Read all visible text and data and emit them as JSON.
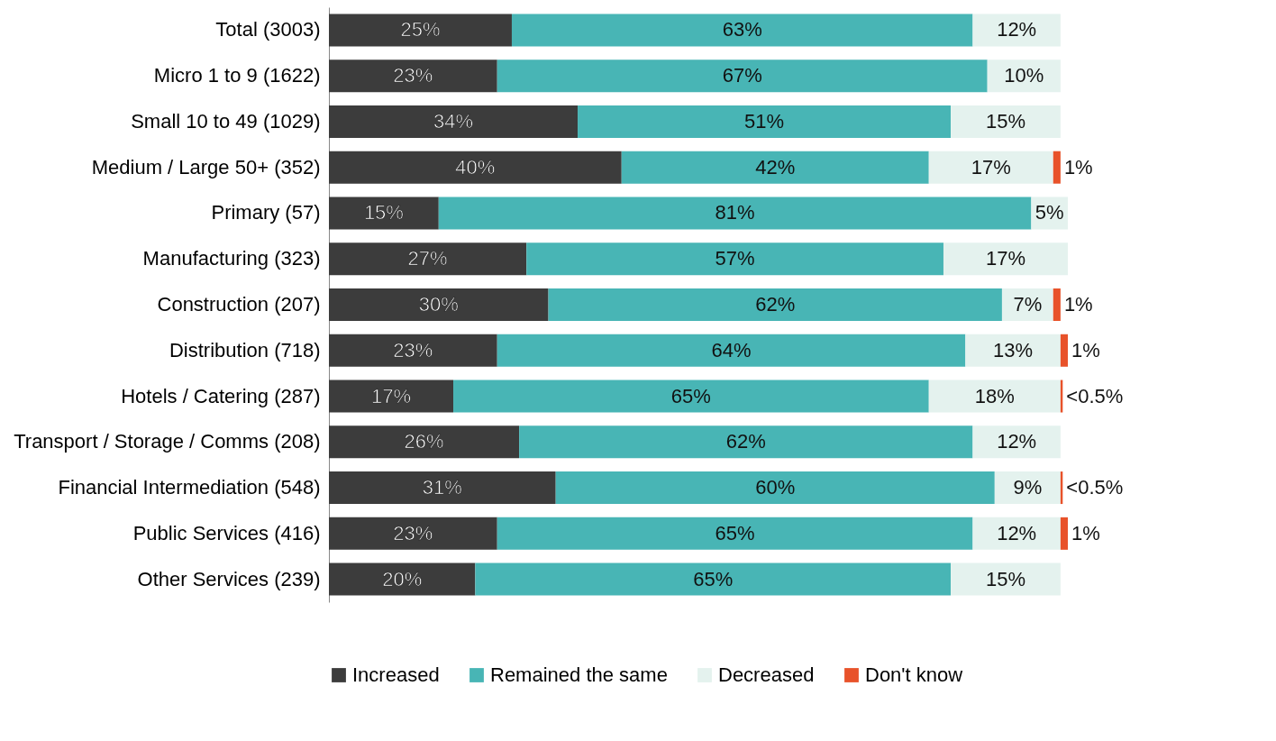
{
  "chart_data": {
    "type": "bar",
    "orientation": "horizontal",
    "stacked": true,
    "legend": "bottom",
    "categories": [
      "Total (3003)",
      "Micro 1 to 9 (1622)",
      "Small 10 to 49 (1029)",
      "Medium / Large 50+ (352)",
      "Primary  (57)",
      "Manufacturing (323)",
      "Construction (207)",
      "Distribution  (718)",
      "Hotels / Catering  (287)",
      "Transport / Storage / Comms  (208)",
      "Financial Intermediation  (548)",
      "Public Services  (416)",
      "Other Services  (239)"
    ],
    "series": [
      {
        "name": "Increased",
        "color": "#3c3c3c",
        "values": [
          25,
          23,
          34,
          40,
          15,
          27,
          30,
          23,
          17,
          26,
          31,
          23,
          20
        ],
        "value_labels": [
          "25%",
          "23%",
          "34%",
          "40%",
          "15%",
          "27%",
          "30%",
          "23%",
          "17%",
          "26%",
          "31%",
          "23%",
          "20%"
        ]
      },
      {
        "name": "Remained the same",
        "color": "#48b5b5",
        "values": [
          63,
          67,
          51,
          42,
          81,
          57,
          62,
          64,
          65,
          62,
          60,
          65,
          65
        ],
        "value_labels": [
          "63%",
          "67%",
          "51%",
          "42%",
          "81%",
          "57%",
          "62%",
          "64%",
          "65%",
          "62%",
          "60%",
          "65%",
          "65%"
        ]
      },
      {
        "name": "Decreased",
        "color": "#e4f2ee",
        "values": [
          12,
          10,
          15,
          17,
          5,
          17,
          7,
          13,
          18,
          12,
          9,
          12,
          15
        ],
        "value_labels": [
          "12%",
          "10%",
          "15%",
          "17%",
          "5%",
          "17%",
          "7%",
          "13%",
          "18%",
          "12%",
          "9%",
          "12%",
          "15%"
        ]
      },
      {
        "name": "Don't know",
        "color": "#e8522a",
        "values": [
          null,
          null,
          null,
          1,
          null,
          null,
          1,
          1,
          0.3,
          null,
          0.3,
          1,
          null
        ],
        "value_labels": [
          null,
          null,
          null,
          "1%",
          null,
          null,
          "1%",
          "1%",
          "<0.5%",
          null,
          "<0.5%",
          "1%",
          null
        ]
      }
    ]
  }
}
